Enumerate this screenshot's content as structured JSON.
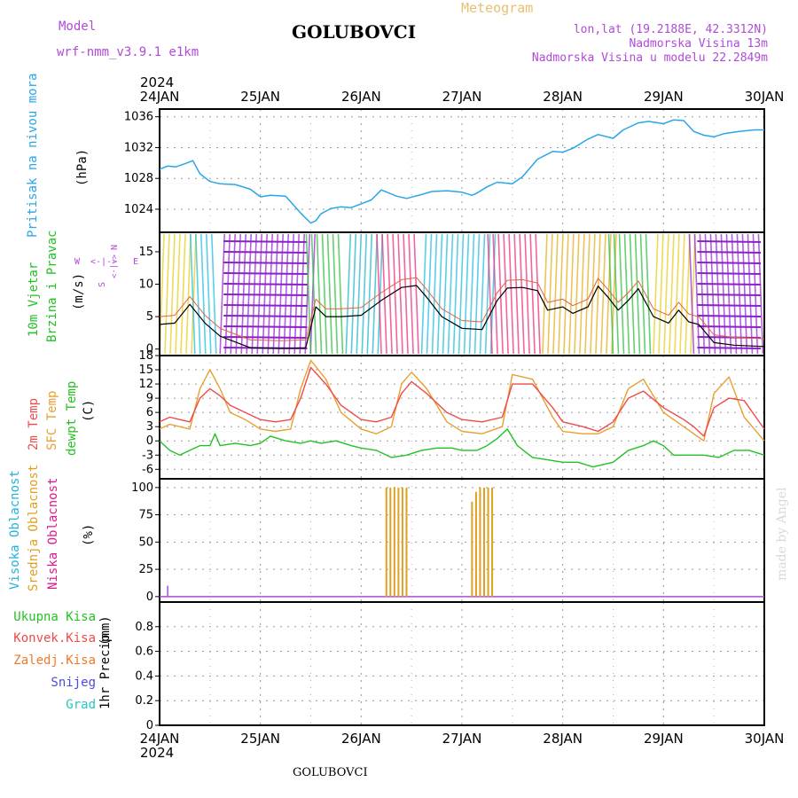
{
  "header": {
    "model_label": "Model",
    "model_name": "wrf-nmm_v3.9.1 e1km",
    "station": "GOLUBOVCI",
    "title": "Meteogram",
    "lonlat": "lon,lat (19.2188E, 42.3312N)",
    "altitude": "Nadmorska Visina 13m",
    "model_altitude": "Nadmorska Visina u modelu 22.2849m"
  },
  "footer": {
    "station": "GOLUBOVCI",
    "watermark": "made by Angel"
  },
  "colors": {
    "pressure": "#2aa6e6",
    "temp2m": "#f04a4a",
    "sfc": "#e8a030",
    "dewpt": "#22c222",
    "high_cloud": "#22b3e0",
    "mid_cloud": "#e0a020",
    "low_cloud": "#e01a8c",
    "purple": "#b04ad8",
    "grid": "#9a9a9a"
  },
  "chart_data": [
    {
      "type": "line",
      "panel": "pressure",
      "year_label": "2024",
      "x_ticks": [
        "24JAN",
        "25JAN",
        "26JAN",
        "27JAN",
        "28JAN",
        "29JAN",
        "30JAN"
      ],
      "xlim": [
        0,
        6
      ],
      "ylabel_parts": [
        "Pritisak na nivou mora",
        "(hPa)"
      ],
      "ylim": [
        1021,
        1037
      ],
      "yticks": [
        1024,
        1028,
        1032,
        1036
      ],
      "grid": true,
      "series": [
        {
          "x": [
            0,
            0.08,
            0.16,
            0.25,
            0.33,
            0.4,
            0.5,
            0.6,
            0.75,
            0.9,
            1.0,
            1.1,
            1.25,
            1.4,
            1.5,
            1.55,
            1.6,
            1.7,
            1.8,
            1.9,
            2.0,
            2.1,
            2.2,
            2.35,
            2.45,
            2.6,
            2.7,
            2.85,
            3.0,
            3.1,
            3.15,
            3.25,
            3.35,
            3.5,
            3.6,
            3.75,
            3.9,
            4.0,
            4.1,
            4.25,
            4.35,
            4.5,
            4.6,
            4.75,
            4.85,
            5.0,
            5.1,
            5.2,
            5.3,
            5.4,
            5.5,
            5.6,
            5.75,
            5.9,
            6.0
          ],
          "values": [
            1029.2,
            1029.6,
            1029.5,
            1029.9,
            1030.3,
            1028.6,
            1027.6,
            1027.3,
            1027.2,
            1026.6,
            1025.6,
            1025.8,
            1025.7,
            1023.5,
            1022.2,
            1022.5,
            1023.4,
            1024.1,
            1024.3,
            1024.2,
            1024.7,
            1025.2,
            1026.5,
            1025.7,
            1025.4,
            1025.9,
            1026.3,
            1026.4,
            1026.2,
            1025.8,
            1026.1,
            1026.9,
            1027.5,
            1027.3,
            1028.2,
            1030.5,
            1031.5,
            1031.4,
            1031.9,
            1033.1,
            1033.7,
            1033.2,
            1034.3,
            1035.2,
            1035.4,
            1035.1,
            1035.6,
            1035.5,
            1034.1,
            1033.6,
            1033.4,
            1033.8,
            1034.1,
            1034.3,
            1034.3
          ]
        }
      ]
    },
    {
      "type": "line",
      "panel": "wind",
      "ylabel_parts": [
        "10m Vjetar",
        "Brzina i Pravac",
        "(m/s)"
      ],
      "direction_legend": [
        "N",
        "W",
        "E",
        "S",
        "<-|->",
        "<-|->"
      ],
      "ylim": [
        -1,
        18
      ],
      "yticks": [
        0,
        5,
        10,
        15
      ],
      "series": [
        {
          "name": "speed",
          "x": [
            0,
            0.15,
            0.3,
            0.45,
            0.6,
            0.9,
            1.2,
            1.45,
            1.55,
            1.65,
            1.8,
            2.0,
            2.2,
            2.4,
            2.55,
            2.65,
            2.8,
            3.0,
            3.2,
            3.35,
            3.45,
            3.6,
            3.75,
            3.85,
            4.0,
            4.1,
            4.25,
            4.35,
            4.45,
            4.55,
            4.65,
            4.75,
            4.9,
            5.05,
            5.15,
            5.25,
            5.35,
            5.5,
            5.7,
            6.0
          ],
          "values": [
            3.8,
            4.0,
            6.9,
            4.0,
            2.0,
            0.2,
            0.1,
            0.2,
            6.5,
            5.0,
            5.0,
            5.2,
            7.5,
            9.5,
            9.8,
            8.0,
            5.0,
            3.2,
            3.0,
            7.5,
            9.4,
            9.5,
            9.0,
            6.0,
            6.5,
            5.5,
            6.5,
            9.7,
            8.0,
            6.0,
            7.5,
            9.3,
            5.0,
            4.0,
            6.0,
            4.2,
            3.8,
            1.0,
            0.6,
            0.4
          ]
        }
      ],
      "direction_bands": [
        {
          "from": 0.0,
          "to": 0.35,
          "color": "#e8d020"
        },
        {
          "from": 0.35,
          "to": 0.6,
          "color": "#22c0e0"
        },
        {
          "from": 0.6,
          "to": 1.5,
          "color": "#9a2ad8"
        },
        {
          "from": 1.5,
          "to": 1.85,
          "color": "#30c040"
        },
        {
          "from": 1.85,
          "to": 2.2,
          "color": "#22b8c8"
        },
        {
          "from": 2.2,
          "to": 2.6,
          "color": "#f03080"
        },
        {
          "from": 2.6,
          "to": 3.3,
          "color": "#22c0e0"
        },
        {
          "from": 3.3,
          "to": 3.8,
          "color": "#f03080"
        },
        {
          "from": 3.8,
          "to": 4.5,
          "color": "#e8b020"
        },
        {
          "from": 4.5,
          "to": 4.9,
          "color": "#30c040"
        },
        {
          "from": 4.9,
          "to": 5.3,
          "color": "#e8d020"
        },
        {
          "from": 5.3,
          "to": 6.0,
          "color": "#9a2ad8"
        }
      ]
    },
    {
      "type": "line",
      "panel": "temperature",
      "ylabel_parts": [
        "2m Temp",
        "SFC Temp",
        "dewpt Temp",
        "(C)"
      ],
      "ylim": [
        -8,
        18
      ],
      "yticks": [
        -6,
        -3,
        0,
        3,
        6,
        9,
        12,
        15,
        18
      ],
      "series": [
        {
          "name": "2m Temp",
          "x": [
            0,
            0.1,
            0.2,
            0.3,
            0.4,
            0.5,
            0.6,
            0.7,
            0.85,
            1.0,
            1.15,
            1.3,
            1.4,
            1.5,
            1.65,
            1.8,
            2.0,
            2.15,
            2.3,
            2.4,
            2.5,
            2.65,
            2.85,
            3.0,
            3.2,
            3.4,
            3.5,
            3.7,
            3.9,
            4.0,
            4.2,
            4.35,
            4.5,
            4.65,
            4.8,
            5.0,
            5.2,
            5.3,
            5.4,
            5.5,
            5.65,
            5.8,
            6.0
          ],
          "values": [
            4,
            5,
            4.5,
            4,
            9,
            11,
            9.5,
            7.5,
            6,
            4.5,
            4,
            4.5,
            9,
            15.5,
            12,
            7.5,
            4.5,
            4,
            5,
            10,
            12.5,
            10,
            6,
            4.5,
            4,
            5,
            12,
            12,
            7,
            4,
            3,
            2,
            4,
            9,
            10.5,
            7,
            4.5,
            3,
            1,
            7,
            9,
            8.5,
            2.5
          ]
        },
        {
          "name": "SFC Temp",
          "x": [
            0,
            0.1,
            0.2,
            0.3,
            0.4,
            0.5,
            0.6,
            0.7,
            0.85,
            1.0,
            1.15,
            1.3,
            1.4,
            1.5,
            1.65,
            1.8,
            2.0,
            2.15,
            2.3,
            2.4,
            2.5,
            2.65,
            2.85,
            3.0,
            3.2,
            3.4,
            3.5,
            3.7,
            3.9,
            4.0,
            4.2,
            4.35,
            4.5,
            4.65,
            4.8,
            5.0,
            5.2,
            5.3,
            5.4,
            5.5,
            5.65,
            5.8,
            6.0
          ],
          "values": [
            2.5,
            3.5,
            3,
            2.5,
            11,
            15,
            11,
            6,
            4.5,
            2.5,
            2,
            2.5,
            11,
            17,
            13,
            6,
            2.5,
            1.5,
            3,
            12,
            14.5,
            11,
            4,
            2,
            1.5,
            3,
            14,
            13,
            5,
            2,
            1.5,
            1.5,
            3,
            11,
            13,
            6,
            3,
            1.5,
            0,
            10,
            13.5,
            5,
            0
          ]
        },
        {
          "name": "dewpt Temp",
          "x": [
            0,
            0.1,
            0.2,
            0.3,
            0.4,
            0.5,
            0.55,
            0.6,
            0.75,
            0.9,
            1.0,
            1.1,
            1.25,
            1.4,
            1.5,
            1.6,
            1.75,
            1.9,
            2.0,
            2.15,
            2.3,
            2.45,
            2.6,
            2.75,
            2.9,
            3.0,
            3.15,
            3.25,
            3.35,
            3.45,
            3.55,
            3.7,
            3.85,
            4.0,
            4.15,
            4.3,
            4.5,
            4.65,
            4.8,
            4.9,
            5.0,
            5.1,
            5.25,
            5.4,
            5.55,
            5.7,
            5.85,
            6.0
          ],
          "values": [
            0,
            -2,
            -3,
            -2,
            -1,
            -1,
            1.5,
            -1,
            -0.5,
            -1,
            -0.5,
            1,
            0,
            -0.5,
            0,
            -0.5,
            0,
            -1,
            -1.5,
            -2,
            -3.5,
            -3,
            -2,
            -1.5,
            -1.5,
            -2,
            -2,
            -1,
            0.5,
            2.5,
            -1,
            -3.5,
            -4,
            -4.5,
            -4.5,
            -5.5,
            -4.5,
            -2,
            -1,
            0,
            -1,
            -3,
            -3,
            -3,
            -3.5,
            -2,
            -2,
            -3
          ]
        }
      ]
    },
    {
      "type": "bar",
      "panel": "clouds",
      "ylabel_parts": [
        "Visoka Oblacnost",
        "Srednja Oblacnost",
        "Niska Oblacnost",
        "(%)"
      ],
      "ylim": [
        -5,
        108
      ],
      "yticks": [
        0,
        25,
        50,
        75,
        100
      ],
      "series": [
        {
          "name": "Srednja Oblacnost",
          "x": [
            2.25,
            2.29,
            2.33,
            2.37,
            2.41,
            2.45,
            3.1,
            3.14,
            3.18,
            3.22,
            3.26,
            3.3
          ],
          "values": [
            100,
            100,
            100,
            100,
            100,
            100,
            87,
            96,
            100,
            100,
            100,
            100
          ]
        },
        {
          "name": "Niska Oblacnost",
          "x": [
            0.08
          ],
          "values": [
            10
          ]
        }
      ]
    },
    {
      "type": "line",
      "panel": "precipitation",
      "ylabel_parts": [
        "1hr Precip",
        "(mm)"
      ],
      "legend": [
        "Ukupna Kisa",
        "Konvek.Kisa",
        "Zaledj.Kisa",
        "Snijeg",
        "Grad"
      ],
      "ylim": [
        0,
        1.0
      ],
      "yticks": [
        0,
        0.2,
        0.4,
        0.6,
        0.8
      ],
      "series": []
    }
  ]
}
